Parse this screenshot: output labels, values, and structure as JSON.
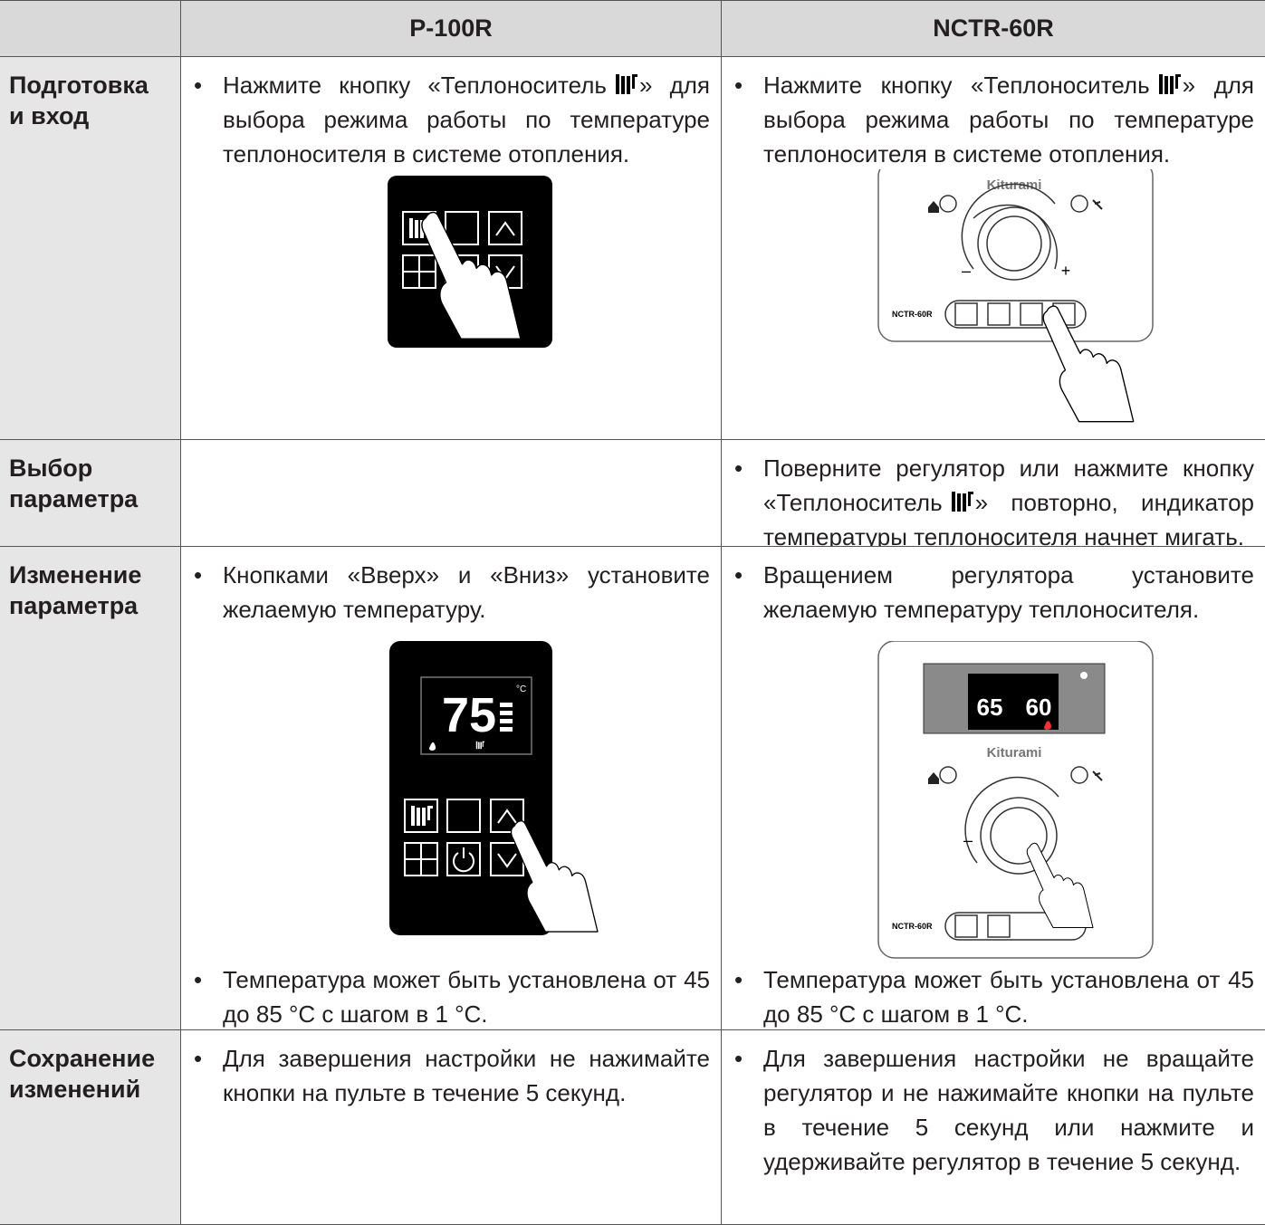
{
  "header": {
    "col1": "P-100R",
    "col2": "NCTR-60R"
  },
  "rows": [
    {
      "label": [
        "Подготовка",
        "и вход"
      ],
      "p100r": [
        {
          "before": "Нажмите кнопку «Теплоноситель",
          "after": "» для выбора режима работы по температуре теплоносителя в системе отопления."
        }
      ],
      "nctr": [
        {
          "before": "Нажмите кнопку «Теплоноситель",
          "after": "» для выбора режима работы по температуре теплоносителя в системе отопления."
        }
      ]
    },
    {
      "label": [
        "Выбор",
        "параметра"
      ],
      "nctr": [
        {
          "before": "Поверните регулятор или нажмите кнопку «Теплоноситель",
          "after": "» повторно, индикатор температуры теплоносителя начнет мигать."
        }
      ]
    },
    {
      "label": [
        "Изменение",
        "параметра"
      ],
      "p100r": [
        {
          "text": "Кнопками «Вверх» и «Вниз» установите желаемую температуру."
        },
        {
          "text": "Температура может быть установлена от 45 до 85 °C с шагом в 1 °C."
        }
      ],
      "nctr": [
        {
          "text": "Вращением регулятора установите желаемую температуру теплоносителя."
        },
        {
          "text": "Температура может быть установлена от 45 до 85 °C с шагом в 1 °C."
        }
      ]
    },
    {
      "label": [
        "Сохранение",
        "изменений"
      ],
      "p100r": [
        {
          "text": "Для завершения настройки не нажимайте кнопки на пульте в течение 5 секунд."
        }
      ],
      "nctr": [
        {
          "text": "Для завершения настройки не вращайте регулятор и не нажимайте кнопки на пульте в течение 5 секунд или нажмите и удерживайте регулятор в течение 5 секунд."
        }
      ]
    }
  ],
  "devices": {
    "brand": "Kiturami",
    "model": "NCTR-60R",
    "p100r_temp": "75",
    "nctr_temp_heat": "65",
    "nctr_temp_water": "60",
    "unit": "°C",
    "minus": "–",
    "plus": "+"
  }
}
